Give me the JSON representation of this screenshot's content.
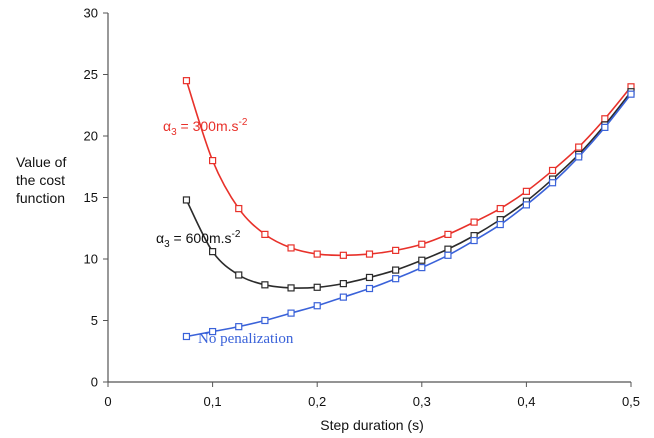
{
  "chart_data": {
    "type": "line",
    "title": "",
    "xlabel": "Step duration (s)",
    "ylabel_lines": [
      "Value of",
      "the cost",
      "function"
    ],
    "xlim": [
      0,
      0.5
    ],
    "ylim": [
      0,
      30
    ],
    "x_ticks": [
      0,
      0.1,
      0.2,
      0.3,
      0.4,
      0.5
    ],
    "x_tick_labels": [
      "0",
      "0,1",
      "0,2",
      "0,3",
      "0,4",
      "0,5"
    ],
    "y_ticks": [
      0,
      5,
      10,
      15,
      20,
      25,
      30
    ],
    "y_tick_labels": [
      "0",
      "5",
      "10",
      "15",
      "20",
      "25",
      "30"
    ],
    "grid": false,
    "marker": "square",
    "series": [
      {
        "name": "α3 = 300m.s-2",
        "label_parts": {
          "alpha": "α",
          "sub": "3",
          "text": " = 300m.s",
          "sup": "-2"
        },
        "color": "#e8312a",
        "x": [
          0.075,
          0.1,
          0.125,
          0.15,
          0.175,
          0.2,
          0.225,
          0.25,
          0.275,
          0.3,
          0.325,
          0.35,
          0.375,
          0.4,
          0.425,
          0.45,
          0.475,
          0.5
        ],
        "values": [
          24.5,
          18.0,
          14.1,
          12.0,
          10.9,
          10.4,
          10.3,
          10.4,
          10.7,
          11.2,
          12.0,
          13.0,
          14.1,
          15.5,
          17.2,
          19.1,
          21.4,
          24.0
        ]
      },
      {
        "name": "α3 = 600m.s-2",
        "label_parts": {
          "alpha": "α",
          "sub": "3",
          "text": " = 600m.s",
          "sup": "-2"
        },
        "color": "#2b2b2b",
        "x": [
          0.075,
          0.1,
          0.125,
          0.15,
          0.175,
          0.2,
          0.225,
          0.25,
          0.275,
          0.3,
          0.325,
          0.35,
          0.375,
          0.4,
          0.425,
          0.45,
          0.475,
          0.5
        ],
        "values": [
          14.8,
          10.6,
          8.7,
          7.9,
          7.65,
          7.7,
          8.0,
          8.5,
          9.1,
          9.9,
          10.8,
          11.9,
          13.2,
          14.7,
          16.5,
          18.5,
          20.9,
          23.6
        ]
      },
      {
        "name": "No penalization",
        "color": "#3a62d9",
        "x": [
          0.075,
          0.1,
          0.125,
          0.15,
          0.175,
          0.2,
          0.225,
          0.25,
          0.275,
          0.3,
          0.325,
          0.35,
          0.375,
          0.4,
          0.425,
          0.45,
          0.475,
          0.5
        ],
        "values": [
          3.7,
          4.1,
          4.5,
          5.0,
          5.6,
          6.2,
          6.9,
          7.6,
          8.4,
          9.3,
          10.3,
          11.5,
          12.8,
          14.4,
          16.2,
          18.3,
          20.7,
          23.4
        ]
      }
    ]
  }
}
